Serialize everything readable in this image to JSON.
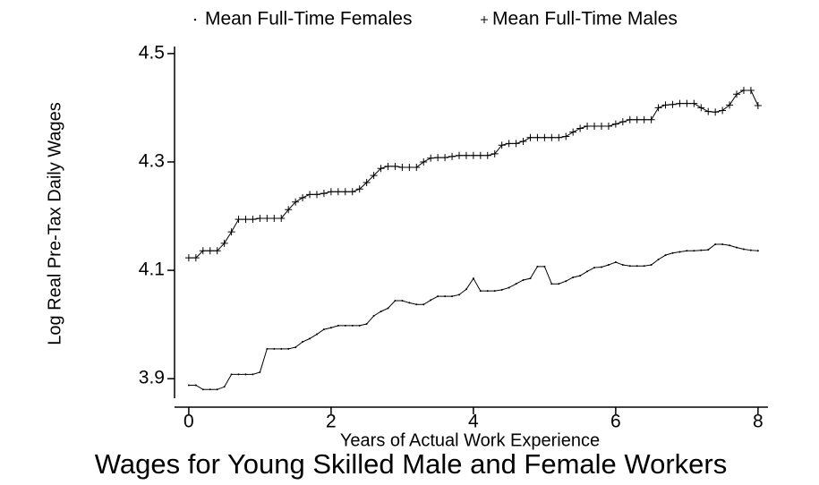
{
  "chart_data": {
    "type": "line",
    "title": "Wages for Young Skilled Male and Female Workers",
    "xlabel": "Years of Actual Work Experience",
    "ylabel": "Log Real Pre-Tax Daily Wages",
    "x": [
      0,
      0.1,
      0.2,
      0.3,
      0.4,
      0.5,
      0.6,
      0.7,
      0.8,
      0.9,
      1,
      1.1,
      1.2,
      1.3,
      1.4,
      1.5,
      1.6,
      1.7,
      1.8,
      1.9,
      2,
      2.1,
      2.2,
      2.3,
      2.4,
      2.5,
      2.6,
      2.7,
      2.8,
      2.9,
      3,
      3.1,
      3.2,
      3.3,
      3.4,
      3.5,
      3.6,
      3.7,
      3.8,
      3.9,
      4,
      4.1,
      4.2,
      4.3,
      4.4,
      4.5,
      4.6,
      4.7,
      4.8,
      4.9,
      5,
      5.1,
      5.2,
      5.3,
      5.4,
      5.5,
      5.6,
      5.7,
      5.8,
      5.9,
      6,
      6.1,
      6.2,
      6.3,
      6.4,
      6.5,
      6.6,
      6.7,
      6.8,
      6.9,
      7,
      7.1,
      7.2,
      7.3,
      7.4,
      7.5,
      7.6,
      7.7,
      7.8,
      7.9,
      8
    ],
    "series": [
      {
        "name": "Mean Full-Time Females",
        "color": "#000000",
        "marker": "dot",
        "values": [
          3.888,
          3.888,
          3.88,
          3.88,
          3.88,
          3.885,
          3.908,
          3.908,
          3.908,
          3.908,
          3.912,
          3.955,
          3.955,
          3.955,
          3.955,
          3.958,
          3.968,
          3.974,
          3.982,
          3.991,
          3.994,
          3.998,
          3.998,
          3.998,
          3.998,
          4.001,
          4.016,
          4.024,
          4.03,
          4.044,
          4.044,
          4.04,
          4.037,
          4.037,
          4.045,
          4.052,
          4.052,
          4.052,
          4.055,
          4.065,
          4.085,
          4.062,
          4.062,
          4.062,
          4.064,
          4.068,
          4.075,
          4.082,
          4.085,
          4.107,
          4.107,
          4.075,
          4.075,
          4.08,
          4.087,
          4.09,
          4.098,
          4.105,
          4.106,
          4.11,
          4.115,
          4.11,
          4.108,
          4.108,
          4.108,
          4.11,
          4.12,
          4.128,
          4.132,
          4.134,
          4.136,
          4.136,
          4.137,
          4.138,
          4.148,
          4.148,
          4.146,
          4.142,
          4.139,
          4.137,
          4.136
        ]
      },
      {
        "name": "Mean Full-Time Males",
        "color": "#000000",
        "marker": "plus",
        "values": [
          4.123,
          4.123,
          4.136,
          4.136,
          4.136,
          4.15,
          4.171,
          4.194,
          4.194,
          4.194,
          4.196,
          4.196,
          4.196,
          4.196,
          4.212,
          4.226,
          4.234,
          4.24,
          4.24,
          4.242,
          4.245,
          4.245,
          4.245,
          4.245,
          4.25,
          4.262,
          4.275,
          4.288,
          4.292,
          4.292,
          4.29,
          4.29,
          4.29,
          4.3,
          4.307,
          4.308,
          4.308,
          4.31,
          4.312,
          4.312,
          4.312,
          4.312,
          4.312,
          4.315,
          4.331,
          4.334,
          4.334,
          4.338,
          4.345,
          4.345,
          4.345,
          4.345,
          4.345,
          4.347,
          4.355,
          4.362,
          4.366,
          4.366,
          4.366,
          4.366,
          4.37,
          4.374,
          4.378,
          4.378,
          4.378,
          4.378,
          4.4,
          4.405,
          4.406,
          4.408,
          4.408,
          4.408,
          4.4,
          4.393,
          4.392,
          4.395,
          4.405,
          4.425,
          4.432,
          4.432,
          4.404
        ]
      }
    ],
    "xlim": [
      -0.2,
      8.14
    ],
    "xticks": [
      0,
      2,
      4,
      6,
      8
    ],
    "ylim": [
      3.864,
      4.513
    ],
    "yticks": [
      3.9,
      4.1,
      4.3,
      4.5
    ],
    "grid": false,
    "legend": "top"
  }
}
